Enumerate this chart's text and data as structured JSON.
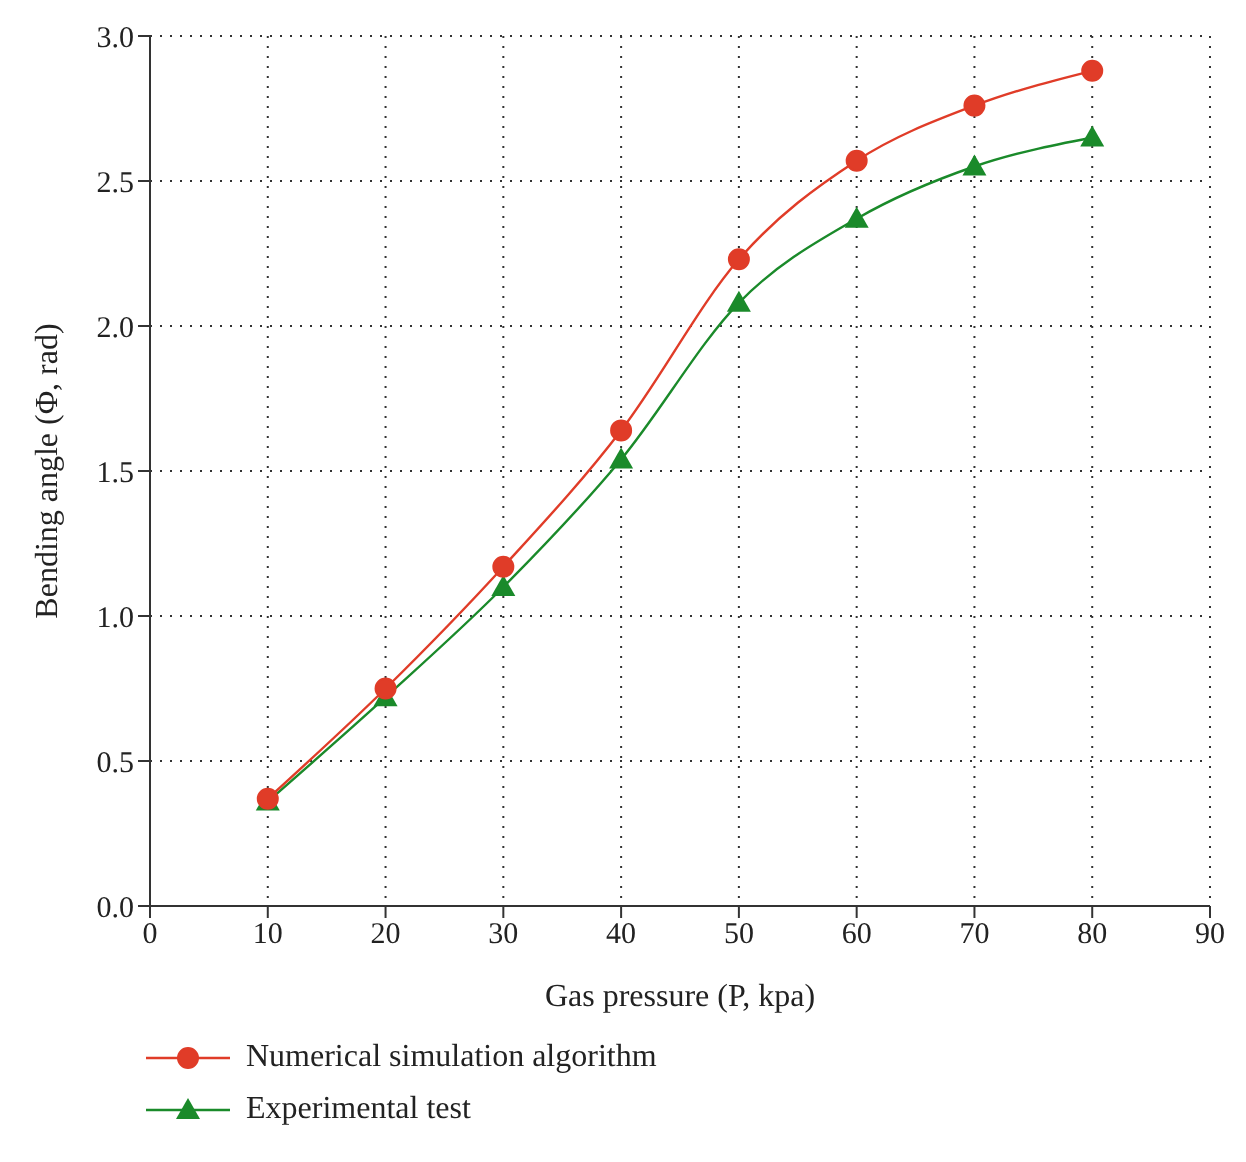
{
  "chart_data": {
    "type": "line",
    "xlabel": "Gas pressure (P, kpa)",
    "ylabel": "Bending angle (Φ, rad)",
    "x": [
      10,
      20,
      30,
      40,
      50,
      60,
      70,
      80
    ],
    "series": [
      {
        "name": "Numerical simulation algorithm",
        "color": "#e03c28",
        "marker": "circle",
        "values": [
          0.37,
          0.75,
          1.17,
          1.64,
          2.23,
          2.57,
          2.76,
          2.88
        ]
      },
      {
        "name": "Experimental test",
        "color": "#1a8a2a",
        "marker": "triangle",
        "values": [
          0.36,
          0.72,
          1.1,
          1.54,
          2.08,
          2.37,
          2.55,
          2.65
        ]
      }
    ],
    "xlim": [
      0,
      90
    ],
    "xticks": [
      0,
      10,
      20,
      30,
      40,
      50,
      60,
      70,
      80,
      90
    ],
    "ylim": [
      0,
      3
    ],
    "yticks": [
      {
        "value": 0,
        "label": "0.0"
      },
      {
        "value": 0.5,
        "label": "0.5"
      },
      {
        "value": 1,
        "label": "1.0"
      },
      {
        "value": 1.5,
        "label": "1.5"
      },
      {
        "value": 2,
        "label": "2.0"
      },
      {
        "value": 2.5,
        "label": "2.5"
      },
      {
        "value": 3,
        "label": "3.0"
      }
    ],
    "grid": true,
    "legend": "bottom left",
    "line_style": "solid"
  }
}
